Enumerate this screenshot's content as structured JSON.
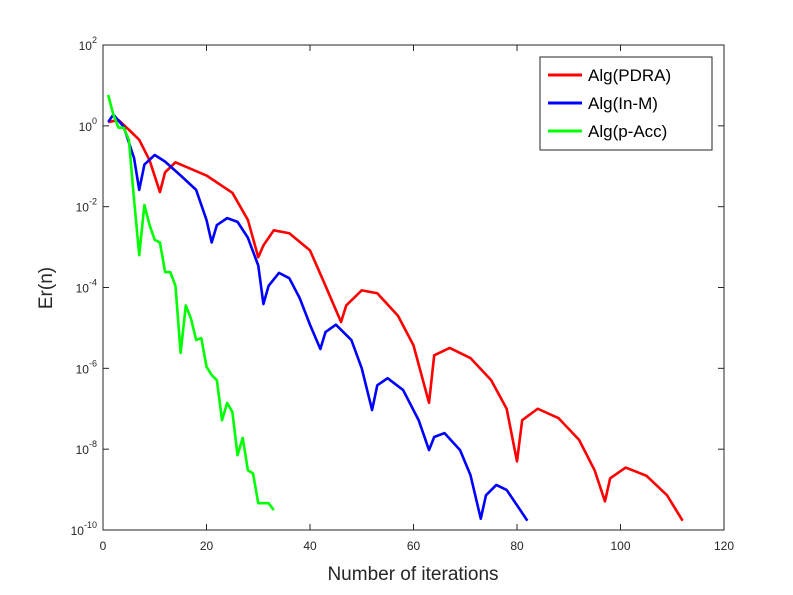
{
  "chart_data": {
    "type": "line",
    "xlabel": "Number of iterations",
    "ylabel": "Er(n)",
    "xlim": [
      0,
      120
    ],
    "xticks": [
      0,
      20,
      40,
      60,
      80,
      100,
      120
    ],
    "ylim": [
      1e-10,
      100
    ],
    "log_y": true,
    "yticks": [
      {
        "value": 1e-10,
        "label": "10",
        "power": "-10"
      },
      {
        "value": 1e-08,
        "label": "10",
        "power": "-8"
      },
      {
        "value": 1e-06,
        "label": "10",
        "power": "-6"
      },
      {
        "value": 0.0001,
        "label": "10",
        "power": "-4"
      },
      {
        "value": 0.01,
        "label": "10",
        "power": "-2"
      },
      {
        "value": 1,
        "label": "10",
        "power": "0"
      },
      {
        "value": 100,
        "label": "10",
        "power": "2"
      }
    ],
    "legend": "top-right",
    "grid": false,
    "series": [
      {
        "name": "Alg(PDRA)",
        "color": "#ff0000",
        "x": [
          1,
          3,
          5,
          7,
          9,
          11,
          12,
          14,
          20,
          25,
          28,
          30,
          31,
          33,
          36,
          40,
          43,
          46,
          47,
          50,
          53,
          57,
          60,
          63,
          64,
          67,
          71,
          75,
          78,
          80,
          81,
          84,
          88,
          92,
          95,
          97,
          98,
          101,
          105,
          109,
          112
        ],
        "values": [
          1.24,
          1.39,
          0.8,
          0.45,
          0.14,
          0.023,
          0.071,
          0.125,
          0.059,
          0.022,
          0.0047,
          0.00056,
          0.0011,
          0.0026,
          0.0022,
          0.00083,
          0.00011,
          1.4e-05,
          3.6e-05,
          8.5e-05,
          7.2e-05,
          2e-05,
          3.7e-06,
          1.4e-07,
          2.1e-06,
          3.2e-06,
          1.8e-06,
          5.1e-07,
          1e-07,
          5e-09,
          5.2e-08,
          1e-07,
          5.9e-08,
          1.7e-08,
          3e-09,
          5.1e-10,
          1.9e-09,
          3.5e-09,
          2.2e-09,
          7.2e-10,
          1.7e-10
        ]
      },
      {
        "name": "Alg(In-M)",
        "color": "#0000ff",
        "x": [
          1,
          2,
          4,
          6,
          7,
          8,
          10,
          12,
          15,
          18,
          20,
          21,
          22,
          24,
          26,
          28,
          30,
          31,
          32,
          34,
          36,
          38,
          40,
          42,
          43,
          45,
          48,
          50,
          52,
          53,
          55,
          58,
          61,
          63,
          64,
          66,
          69,
          71,
          73,
          74,
          76,
          78,
          80,
          82
        ],
        "values": [
          1.24,
          1.9,
          0.95,
          0.16,
          0.026,
          0.11,
          0.19,
          0.13,
          0.059,
          0.026,
          0.0047,
          0.0013,
          0.0035,
          0.0052,
          0.0042,
          0.0017,
          0.00035,
          3.9e-05,
          0.00011,
          0.00023,
          0.00017,
          5.5e-05,
          1.2e-05,
          3e-06,
          7.9e-06,
          1.2e-05,
          5e-06,
          1e-06,
          9.3e-08,
          3.8e-07,
          5.7e-07,
          2.9e-07,
          5.2e-08,
          9.5e-09,
          2e-08,
          2.5e-08,
          9.5e-09,
          2.3e-09,
          1.9e-10,
          7.2e-10,
          1.3e-09,
          9.8e-10,
          4.1e-10,
          1.7e-10
        ]
      },
      {
        "name": "Alg(p-Acc)",
        "color": "#00ff00",
        "x": [
          1,
          2,
          3,
          4,
          5,
          6,
          7,
          8,
          9,
          10,
          11,
          12,
          13,
          14,
          15,
          16,
          17,
          18,
          19,
          20,
          21,
          22,
          23,
          24,
          25,
          26,
          27,
          28,
          29,
          30,
          31,
          32,
          33
        ],
        "values": [
          5.8,
          1.9,
          0.9,
          0.9,
          0.45,
          0.015,
          0.00063,
          0.011,
          0.0035,
          0.0015,
          0.0013,
          0.00024,
          0.00024,
          0.00011,
          2.4e-06,
          3.6e-05,
          1.7e-05,
          5e-06,
          5.6e-06,
          1.1e-06,
          6.8e-07,
          5.1e-07,
          5.2e-08,
          1.4e-07,
          8.3e-08,
          7.1e-09,
          1.9e-08,
          3e-09,
          2.5e-09,
          4.6e-10,
          4.6e-10,
          4.6e-10,
          3.1e-10
        ]
      }
    ]
  }
}
